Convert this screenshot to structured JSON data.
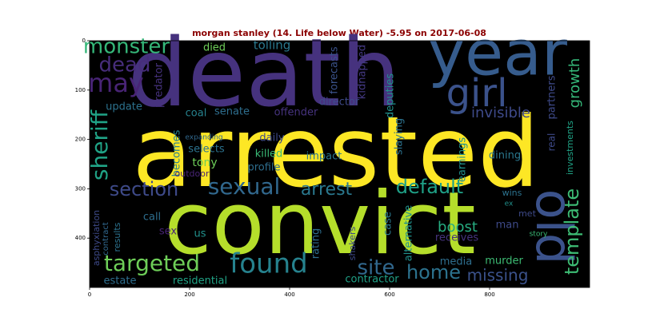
{
  "chart_data": {
    "type": "wordcloud",
    "title": "morgan stanley (14. Life below Water) -5.95 on 2017-06-08",
    "title_color": "#8b0000",
    "background": "#000000",
    "xlim": [
      0,
      1000
    ],
    "ylim": [
      500,
      0
    ],
    "xticks": [
      0,
      200,
      400,
      600,
      800
    ],
    "yticks": [
      0,
      100,
      200,
      300,
      400
    ],
    "words": [
      {
        "text": "death",
        "color": "#46327e"
      },
      {
        "text": "year",
        "color": "#365c8d"
      },
      {
        "text": "arrested",
        "color": "#fde725"
      },
      {
        "text": "convict",
        "color": "#b5de2b"
      },
      {
        "text": "old",
        "color": "#3b528b"
      },
      {
        "text": "girl",
        "color": "#3b528b"
      },
      {
        "text": "monster",
        "color": "#35b779"
      },
      {
        "text": "dead",
        "color": "#472d7b"
      },
      {
        "text": "may",
        "color": "#482475"
      },
      {
        "text": "sheriff",
        "color": "#20a386"
      },
      {
        "text": "section",
        "color": "#3e4a89"
      },
      {
        "text": "sexual",
        "color": "#31688e"
      },
      {
        "text": "arrest",
        "color": "#2a788e"
      },
      {
        "text": "default",
        "color": "#1fa187"
      },
      {
        "text": "targeted",
        "color": "#6ece58"
      },
      {
        "text": "found",
        "color": "#26828e"
      },
      {
        "text": "site",
        "color": "#31688e"
      },
      {
        "text": "home",
        "color": "#2c728e"
      },
      {
        "text": "missing",
        "color": "#3b528b"
      },
      {
        "text": "template",
        "color": "#3dbc74"
      },
      {
        "text": "growth",
        "color": "#35b779"
      },
      {
        "text": "boost",
        "color": "#27ad81"
      },
      {
        "text": "invisible",
        "color": "#3e4a89"
      },
      {
        "text": "update",
        "color": "#2c728e"
      },
      {
        "text": "coal",
        "color": "#26828e"
      },
      {
        "text": "senate",
        "color": "#2e6e8e"
      },
      {
        "text": "offender",
        "color": "#46337e"
      },
      {
        "text": "director",
        "color": "#3e4a89"
      },
      {
        "text": "becomes",
        "color": "#277f8e"
      },
      {
        "text": "selects",
        "color": "#2c728e"
      },
      {
        "text": "killed",
        "color": "#3aba76"
      },
      {
        "text": "daily",
        "color": "#3e4a89"
      },
      {
        "text": "tony",
        "color": "#6ece58"
      },
      {
        "text": "impact",
        "color": "#2a788e"
      },
      {
        "text": "profile",
        "color": "#2e6e8e"
      },
      {
        "text": "outdoor",
        "color": "#482475"
      },
      {
        "text": "expanding",
        "color": "#31688e"
      },
      {
        "text": "dining",
        "color": "#2a788e"
      },
      {
        "text": "earnings",
        "color": "#21918c"
      },
      {
        "text": "slaying",
        "color": "#2c728e"
      },
      {
        "text": "deputies",
        "color": "#21918c"
      },
      {
        "text": "kidnapped",
        "color": "#443983"
      },
      {
        "text": "forecasts",
        "color": "#3b528b"
      },
      {
        "text": "partners",
        "color": "#3e4a89"
      },
      {
        "text": "real",
        "color": "#3e4a89"
      },
      {
        "text": "investments",
        "color": "#20a386"
      },
      {
        "text": "predator",
        "color": "#46327e"
      },
      {
        "text": "died",
        "color": "#6ece58"
      },
      {
        "text": "tolling",
        "color": "#2a788e"
      },
      {
        "text": "asphyxiation",
        "color": "#3e4a89"
      },
      {
        "text": "contract",
        "color": "#31688e"
      },
      {
        "text": "results",
        "color": "#2c728e"
      },
      {
        "text": "estate",
        "color": "#2e6e8e"
      },
      {
        "text": "residential",
        "color": "#20a386"
      },
      {
        "text": "call",
        "color": "#2e6e8e"
      },
      {
        "text": "sex",
        "color": "#482475"
      },
      {
        "text": "us",
        "color": "#21918c"
      },
      {
        "text": "rating",
        "color": "#2e6e8e"
      },
      {
        "text": "shakers",
        "color": "#3e4a89"
      },
      {
        "text": "case",
        "color": "#2a788e"
      },
      {
        "text": "alternative",
        "color": "#21918c"
      },
      {
        "text": "contractor",
        "color": "#1fa187"
      },
      {
        "text": "media",
        "color": "#2e6e8e"
      },
      {
        "text": "receives",
        "color": "#46337e"
      },
      {
        "text": "murder",
        "color": "#3dbc74"
      },
      {
        "text": "man",
        "color": "#3e4a89"
      },
      {
        "text": "met",
        "color": "#3e4a89"
      },
      {
        "text": "wins",
        "color": "#2c728e"
      },
      {
        "text": "story",
        "color": "#3aba76"
      },
      {
        "text": "ex",
        "color": "#21918c"
      }
    ]
  }
}
